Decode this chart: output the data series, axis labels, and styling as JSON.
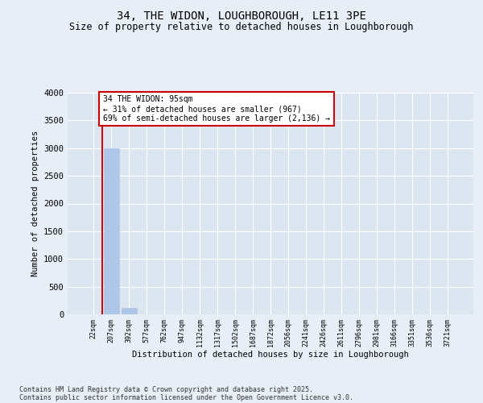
{
  "title": "34, THE WIDON, LOUGHBOROUGH, LE11 3PE",
  "subtitle": "Size of property relative to detached houses in Loughborough",
  "xlabel": "Distribution of detached houses by size in Loughborough",
  "ylabel": "Number of detached properties",
  "categories": [
    "22sqm",
    "207sqm",
    "392sqm",
    "577sqm",
    "762sqm",
    "947sqm",
    "1132sqm",
    "1317sqm",
    "1502sqm",
    "1687sqm",
    "1872sqm",
    "2056sqm",
    "2241sqm",
    "2426sqm",
    "2611sqm",
    "2796sqm",
    "2981sqm",
    "3166sqm",
    "3351sqm",
    "3536sqm",
    "3721sqm"
  ],
  "values": [
    0,
    3000,
    110,
    0,
    0,
    0,
    0,
    0,
    0,
    0,
    0,
    0,
    0,
    0,
    0,
    0,
    0,
    0,
    0,
    0,
    0
  ],
  "bar_color": "#aec6e8",
  "bar_edge_color": "#aec6e8",
  "annotation_text": "34 THE WIDON: 95sqm\n← 31% of detached houses are smaller (967)\n69% of semi-detached houses are larger (2,136) →",
  "annotation_box_color": "#ffffff",
  "annotation_box_edge_color": "#cc0000",
  "vline_color": "#cc0000",
  "vline_x": 0.5,
  "ylim": [
    0,
    4000
  ],
  "yticks": [
    0,
    500,
    1000,
    1500,
    2000,
    2500,
    3000,
    3500,
    4000
  ],
  "bg_color": "#e8eef5",
  "axes_bg_color": "#dce6f0",
  "grid_color": "#ffffff",
  "footer1": "Contains HM Land Registry data © Crown copyright and database right 2025.",
  "footer2": "Contains public sector information licensed under the Open Government Licence v3.0."
}
